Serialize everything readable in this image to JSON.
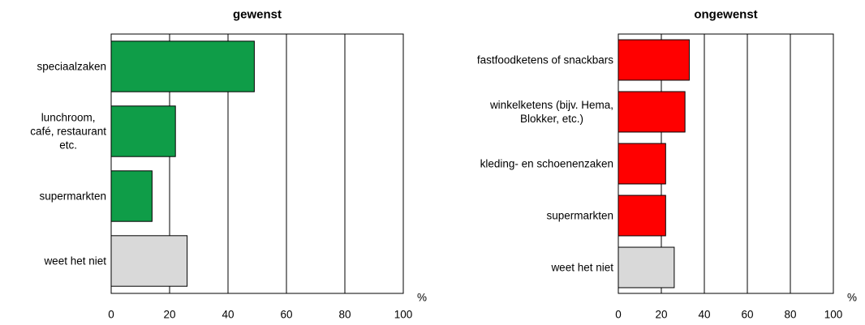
{
  "chart_data": [
    {
      "type": "bar",
      "orientation": "horizontal",
      "title": "gewenst",
      "categories": [
        "speciaalzaken",
        "lunchroom,\ncafé, restaurant\netc.",
        "supermarkten",
        "weet het niet"
      ],
      "values": [
        49,
        22,
        14,
        26
      ],
      "colors": [
        "#0f9d48",
        "#0f9d48",
        "#0f9d48",
        "#d9d9d9"
      ],
      "xlabel": "%",
      "xlim": [
        0,
        100
      ],
      "xticks": [
        0,
        20,
        40,
        60,
        80,
        100
      ],
      "grid": true
    },
    {
      "type": "bar",
      "orientation": "horizontal",
      "title": "ongewenst",
      "categories": [
        "fastfoodketens of snackbars",
        "winkelketens (bijv. Hema,\nBlokker, etc.)",
        "kleding- en schoenenzaken",
        "supermarkten",
        "weet het niet"
      ],
      "values": [
        33,
        31,
        22,
        22,
        26
      ],
      "colors": [
        "#ff0000",
        "#ff0000",
        "#ff0000",
        "#ff0000",
        "#d9d9d9"
      ],
      "xlabel": "%",
      "xlim": [
        0,
        100
      ],
      "xticks": [
        0,
        20,
        40,
        60,
        80,
        100
      ],
      "grid": true
    }
  ]
}
